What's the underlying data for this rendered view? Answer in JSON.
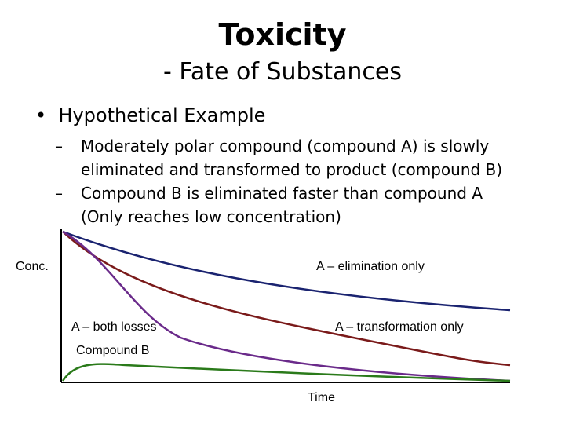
{
  "header": {
    "title": "Toxicity",
    "subtitle": "- Fate of Substances"
  },
  "bullet": "Hypothetical Example",
  "sub_bullets": [
    {
      "lines": [
        "Moderately polar compound (compound A) is slowly",
        "eliminated and transformed to product (compound B)"
      ]
    },
    {
      "lines": [
        "Compound B is eliminated faster than compound A",
        "(Only reaches low concentration)"
      ]
    }
  ],
  "diagram": {
    "y_label": "Conc.",
    "x_label": "Time",
    "curve_labels": [
      "A – elimination only",
      "A – both losses",
      "A – transformation only",
      "Compound B"
    ]
  }
}
